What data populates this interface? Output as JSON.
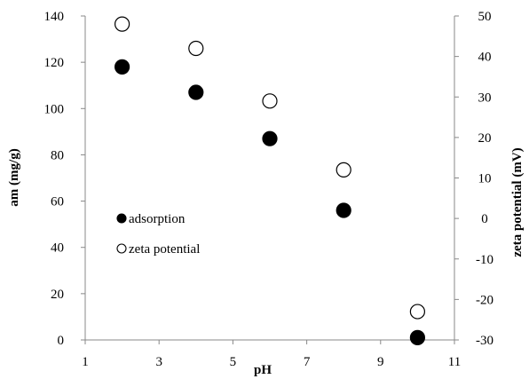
{
  "chart_data": {
    "type": "scatter",
    "x_axis": {
      "label": "pH",
      "range": [
        1,
        11
      ],
      "ticks": [
        1,
        3,
        5,
        7,
        9,
        11
      ]
    },
    "y_axis_left": {
      "label": "am (mg/g)",
      "range": [
        0,
        140
      ],
      "ticks": [
        0,
        20,
        40,
        60,
        80,
        100,
        120,
        140
      ]
    },
    "y_axis_right": {
      "label": "zeta potential (mV)",
      "range": [
        -30,
        50
      ],
      "ticks": [
        -30,
        -20,
        -10,
        0,
        10,
        20,
        30,
        40,
        50
      ]
    },
    "series": [
      {
        "name": "adsorption",
        "axis": "left",
        "marker": "filled-circle",
        "color": "#000000",
        "points": [
          {
            "x": 2,
            "y": 118
          },
          {
            "x": 4,
            "y": 107
          },
          {
            "x": 6,
            "y": 87
          },
          {
            "x": 8,
            "y": 56
          },
          {
            "x": 10,
            "y": 1
          }
        ]
      },
      {
        "name": "zeta potential",
        "axis": "right",
        "marker": "open-circle",
        "color": "#000000",
        "points": [
          {
            "x": 2,
            "y": 48
          },
          {
            "x": 4,
            "y": 42
          },
          {
            "x": 6,
            "y": 29
          },
          {
            "x": 8,
            "y": 12
          },
          {
            "x": 10,
            "y": -23
          }
        ]
      }
    ],
    "legend_position": "center-left",
    "grid": false
  }
}
